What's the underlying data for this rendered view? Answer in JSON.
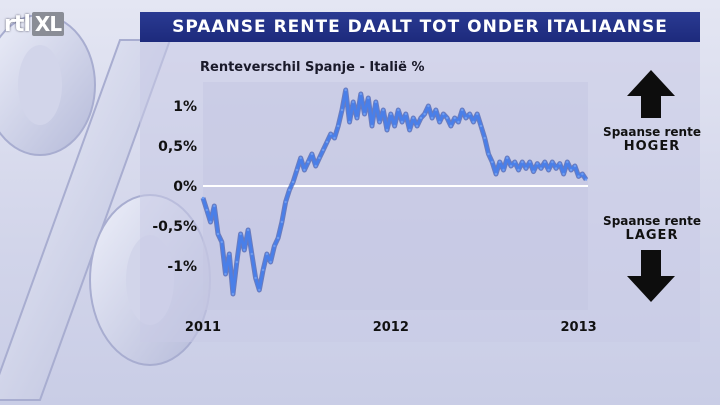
{
  "header": {
    "logo_main": "rtl",
    "logo_suffix": "XL",
    "title": "SPAANSE RENTE DAALT TOT ONDER ITALIAANSE"
  },
  "colors": {
    "title_bar": "#1d2a7c",
    "line": "#4a7fe8",
    "line_shadow": "#1e3a9a",
    "zero_line": "#ffffff",
    "arrow": "#0d0d0d"
  },
  "annotations": {
    "higher_line1": "Spaanse rente",
    "higher_line2": "HOGER",
    "lower_line1": "Spaanse rente",
    "lower_line2": "LAGER"
  },
  "chart_data": {
    "type": "line",
    "title": "Renteverschil Spanje - Italië %",
    "xlabel": "",
    "ylabel": "",
    "x_ticks": [
      {
        "value": 2011,
        "label": "2011"
      },
      {
        "value": 2012,
        "label": "2012"
      },
      {
        "value": 2013,
        "label": "2013"
      }
    ],
    "y_ticks": [
      {
        "value": 1,
        "label": "1%"
      },
      {
        "value": 0.5,
        "label": "0,5%"
      },
      {
        "value": 0,
        "label": "0%"
      },
      {
        "value": -0.5,
        "label": "-0,5%"
      },
      {
        "value": -1,
        "label": "-1%"
      }
    ],
    "xlim": [
      2011.0,
      2013.05
    ],
    "ylim": [
      -1.55,
      1.3
    ],
    "grid": false,
    "series": [
      {
        "points": [
          [
            2011.0,
            -0.15
          ],
          [
            2011.02,
            -0.3
          ],
          [
            2011.04,
            -0.45
          ],
          [
            2011.06,
            -0.25
          ],
          [
            2011.08,
            -0.6
          ],
          [
            2011.1,
            -0.7
          ],
          [
            2011.12,
            -1.1
          ],
          [
            2011.14,
            -0.85
          ],
          [
            2011.16,
            -1.35
          ],
          [
            2011.18,
            -0.95
          ],
          [
            2011.2,
            -0.6
          ],
          [
            2011.22,
            -0.8
          ],
          [
            2011.24,
            -0.55
          ],
          [
            2011.26,
            -0.85
          ],
          [
            2011.28,
            -1.15
          ],
          [
            2011.3,
            -1.3
          ],
          [
            2011.32,
            -1.05
          ],
          [
            2011.34,
            -0.85
          ],
          [
            2011.36,
            -0.95
          ],
          [
            2011.38,
            -0.75
          ],
          [
            2011.4,
            -0.65
          ],
          [
            2011.42,
            -0.45
          ],
          [
            2011.44,
            -0.2
          ],
          [
            2011.46,
            -0.05
          ],
          [
            2011.48,
            0.05
          ],
          [
            2011.5,
            0.2
          ],
          [
            2011.52,
            0.35
          ],
          [
            2011.54,
            0.2
          ],
          [
            2011.56,
            0.3
          ],
          [
            2011.58,
            0.4
          ],
          [
            2011.6,
            0.25
          ],
          [
            2011.62,
            0.35
          ],
          [
            2011.64,
            0.45
          ],
          [
            2011.66,
            0.55
          ],
          [
            2011.68,
            0.65
          ],
          [
            2011.7,
            0.6
          ],
          [
            2011.72,
            0.75
          ],
          [
            2011.74,
            0.95
          ],
          [
            2011.76,
            1.2
          ],
          [
            2011.78,
            0.8
          ],
          [
            2011.8,
            1.05
          ],
          [
            2011.82,
            0.85
          ],
          [
            2011.84,
            1.15
          ],
          [
            2011.86,
            0.9
          ],
          [
            2011.88,
            1.1
          ],
          [
            2011.9,
            0.75
          ],
          [
            2011.92,
            1.05
          ],
          [
            2011.94,
            0.8
          ],
          [
            2011.96,
            0.95
          ],
          [
            2011.98,
            0.7
          ],
          [
            2012.0,
            0.9
          ],
          [
            2012.02,
            0.75
          ],
          [
            2012.04,
            0.95
          ],
          [
            2012.06,
            0.8
          ],
          [
            2012.08,
            0.9
          ],
          [
            2012.1,
            0.7
          ],
          [
            2012.12,
            0.85
          ],
          [
            2012.14,
            0.75
          ],
          [
            2012.16,
            0.85
          ],
          [
            2012.18,
            0.9
          ],
          [
            2012.2,
            1.0
          ],
          [
            2012.22,
            0.85
          ],
          [
            2012.24,
            0.95
          ],
          [
            2012.26,
            0.8
          ],
          [
            2012.28,
            0.9
          ],
          [
            2012.3,
            0.85
          ],
          [
            2012.32,
            0.75
          ],
          [
            2012.34,
            0.85
          ],
          [
            2012.36,
            0.8
          ],
          [
            2012.38,
            0.95
          ],
          [
            2012.4,
            0.85
          ],
          [
            2012.42,
            0.9
          ],
          [
            2012.44,
            0.8
          ],
          [
            2012.46,
            0.9
          ],
          [
            2012.48,
            0.75
          ],
          [
            2012.5,
            0.6
          ],
          [
            2012.52,
            0.4
          ],
          [
            2012.54,
            0.3
          ],
          [
            2012.56,
            0.15
          ],
          [
            2012.58,
            0.3
          ],
          [
            2012.6,
            0.2
          ],
          [
            2012.62,
            0.35
          ],
          [
            2012.64,
            0.25
          ],
          [
            2012.66,
            0.3
          ],
          [
            2012.68,
            0.2
          ],
          [
            2012.7,
            0.3
          ],
          [
            2012.72,
            0.22
          ],
          [
            2012.74,
            0.3
          ],
          [
            2012.76,
            0.18
          ],
          [
            2012.78,
            0.28
          ],
          [
            2012.8,
            0.22
          ],
          [
            2012.82,
            0.3
          ],
          [
            2012.84,
            0.2
          ],
          [
            2012.86,
            0.3
          ],
          [
            2012.88,
            0.22
          ],
          [
            2012.9,
            0.28
          ],
          [
            2012.92,
            0.15
          ],
          [
            2012.94,
            0.3
          ],
          [
            2012.96,
            0.2
          ],
          [
            2012.98,
            0.25
          ],
          [
            2013.0,
            0.12
          ],
          [
            2013.02,
            0.15
          ],
          [
            2013.04,
            0.08
          ]
        ]
      }
    ]
  }
}
